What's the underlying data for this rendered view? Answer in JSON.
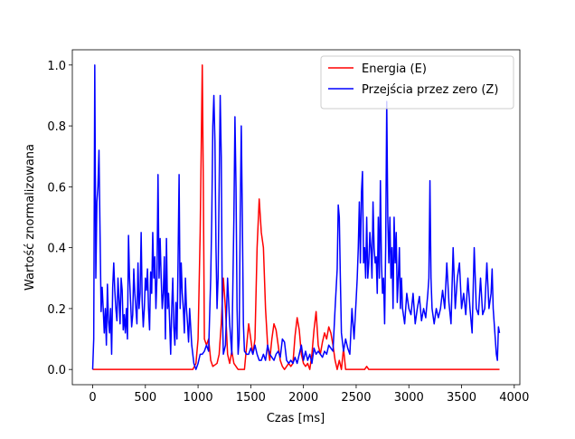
{
  "chart_data": {
    "type": "line",
    "xlabel": "Czas [ms]",
    "ylabel": "Wartość znormalizowana",
    "xlim": [
      -193,
      4053
    ],
    "ylim": [
      -0.05,
      1.05
    ],
    "xticks": [
      0,
      500,
      1000,
      1500,
      2000,
      2500,
      3000,
      3500,
      4000
    ],
    "yticks": [
      {
        "value": 0,
        "label": "0.0"
      },
      0.2,
      0.4,
      0.6,
      0.8,
      {
        "value": 1,
        "label": "1.0"
      }
    ],
    "legend": "upper right",
    "series": [
      {
        "name": "Energia (E)",
        "color": "#ff0000",
        "x": [
          0,
          950,
          980,
          1000,
          1020,
          1040,
          1050,
          1060,
          1080,
          1100,
          1120,
          1140,
          1180,
          1200,
          1220,
          1240,
          1260,
          1280,
          1300,
          1320,
          1340,
          1380,
          1440,
          1480,
          1500,
          1520,
          1540,
          1560,
          1580,
          1600,
          1620,
          1640,
          1660,
          1680,
          1700,
          1720,
          1740,
          1760,
          1780,
          1800,
          1820,
          1860,
          1880,
          1900,
          1920,
          1940,
          1960,
          1980,
          2000,
          2020,
          2040,
          2060,
          2080,
          2100,
          2120,
          2140,
          2160,
          2180,
          2200,
          2220,
          2240,
          2260,
          2280,
          2300,
          2320,
          2340,
          2360,
          2380,
          2400,
          2420,
          2580,
          2600,
          2620,
          3860
        ],
        "values": [
          0,
          0,
          0.02,
          0.1,
          0.45,
          1.0,
          0.6,
          0.1,
          0.08,
          0.1,
          0.03,
          0.01,
          0.02,
          0.05,
          0.15,
          0.3,
          0.2,
          0.05,
          0.02,
          0.06,
          0.02,
          0,
          0,
          0.15,
          0.1,
          0.05,
          0.1,
          0.4,
          0.56,
          0.45,
          0.4,
          0.2,
          0.08,
          0.03,
          0.1,
          0.15,
          0.13,
          0.08,
          0.03,
          0.01,
          0,
          0.02,
          0.01,
          0.02,
          0.11,
          0.17,
          0.13,
          0.05,
          0.02,
          0.01,
          0.02,
          0,
          0.05,
          0.13,
          0.19,
          0.08,
          0.05,
          0.09,
          0.12,
          0.1,
          0.14,
          0.12,
          0.08,
          0.03,
          0,
          0.03,
          0,
          0.07,
          0,
          0,
          0,
          0.01,
          0,
          0
        ]
      },
      {
        "name": "Przejścia przez zero (Z)",
        "color": "#0000ff",
        "x": [
          0,
          10,
          20,
          30,
          40,
          50,
          60,
          70,
          80,
          90,
          100,
          110,
          120,
          130,
          140,
          150,
          160,
          170,
          180,
          190,
          200,
          210,
          220,
          230,
          240,
          250,
          260,
          270,
          280,
          290,
          300,
          310,
          320,
          330,
          340,
          350,
          360,
          370,
          380,
          390,
          400,
          410,
          420,
          430,
          440,
          450,
          460,
          470,
          480,
          490,
          500,
          510,
          520,
          530,
          540,
          550,
          560,
          570,
          580,
          590,
          600,
          610,
          620,
          630,
          640,
          650,
          660,
          670,
          680,
          690,
          700,
          710,
          720,
          730,
          740,
          750,
          760,
          770,
          780,
          790,
          800,
          810,
          820,
          830,
          840,
          850,
          860,
          870,
          880,
          890,
          900,
          910,
          920,
          940,
          960,
          980,
          1000,
          1020,
          1040,
          1060,
          1080,
          1100,
          1120,
          1130,
          1140,
          1150,
          1160,
          1170,
          1180,
          1190,
          1200,
          1210,
          1220,
          1230,
          1240,
          1260,
          1280,
          1300,
          1320,
          1340,
          1350,
          1360,
          1370,
          1380,
          1390,
          1400,
          1410,
          1420,
          1430,
          1440,
          1460,
          1480,
          1500,
          1520,
          1540,
          1560,
          1580,
          1600,
          1620,
          1640,
          1660,
          1680,
          1700,
          1720,
          1740,
          1760,
          1780,
          1800,
          1820,
          1840,
          1860,
          1880,
          1900,
          1920,
          1940,
          1960,
          1980,
          2000,
          2020,
          2040,
          2060,
          2080,
          2100,
          2120,
          2140,
          2160,
          2180,
          2200,
          2220,
          2240,
          2260,
          2280,
          2300,
          2320,
          2330,
          2340,
          2350,
          2360,
          2380,
          2400,
          2420,
          2440,
          2460,
          2480,
          2500,
          2510,
          2520,
          2530,
          2540,
          2550,
          2560,
          2570,
          2580,
          2590,
          2600,
          2610,
          2620,
          2630,
          2640,
          2650,
          2660,
          2670,
          2680,
          2690,
          2700,
          2710,
          2720,
          2730,
          2740,
          2750,
          2760,
          2770,
          2780,
          2790,
          2800,
          2810,
          2820,
          2830,
          2840,
          2850,
          2860,
          2870,
          2880,
          2890,
          2900,
          2910,
          2920,
          2930,
          2940,
          2960,
          2980,
          3000,
          3020,
          3040,
          3060,
          3080,
          3100,
          3120,
          3140,
          3160,
          3180,
          3190,
          3200,
          3210,
          3220,
          3240,
          3260,
          3280,
          3300,
          3320,
          3340,
          3360,
          3380,
          3400,
          3420,
          3440,
          3460,
          3480,
          3500,
          3520,
          3540,
          3560,
          3580,
          3600,
          3620,
          3640,
          3660,
          3680,
          3700,
          3720,
          3740,
          3760,
          3780,
          3790,
          3800,
          3820,
          3830,
          3840,
          3850,
          3860
        ],
        "values": [
          0,
          0.1,
          1.0,
          0.3,
          0.55,
          0.6,
          0.72,
          0.45,
          0.19,
          0.27,
          0.2,
          0.12,
          0.2,
          0.08,
          0.28,
          0.16,
          0.12,
          0.2,
          0.05,
          0.27,
          0.35,
          0.26,
          0.2,
          0.16,
          0.3,
          0.23,
          0.15,
          0.3,
          0.26,
          0.13,
          0.18,
          0.12,
          0.2,
          0.1,
          0.44,
          0.3,
          0.22,
          0.14,
          0.18,
          0.33,
          0.25,
          0.2,
          0.15,
          0.35,
          0.2,
          0.25,
          0.45,
          0.22,
          0.14,
          0.2,
          0.3,
          0.26,
          0.33,
          0.2,
          0.13,
          0.32,
          0.25,
          0.45,
          0.3,
          0.37,
          0.2,
          0.3,
          0.64,
          0.3,
          0.43,
          0.3,
          0.2,
          0.25,
          0.37,
          0.1,
          0.43,
          0.2,
          0.25,
          0.16,
          0.05,
          0.2,
          0.3,
          0.14,
          0.08,
          0.22,
          0.1,
          0.35,
          0.64,
          0.2,
          0.35,
          0.25,
          0.2,
          0.12,
          0.3,
          0.2,
          0.15,
          0.09,
          0.2,
          0.08,
          0.02,
          0,
          0.02,
          0.05,
          0.05,
          0.06,
          0.08,
          0.06,
          0.3,
          0.5,
          0.8,
          0.9,
          0.75,
          0.4,
          0.2,
          0.3,
          0.6,
          0.9,
          0.7,
          0.2,
          0.05,
          0.08,
          0.3,
          0.15,
          0.05,
          0.5,
          0.83,
          0.6,
          0.2,
          0.05,
          0.1,
          0.5,
          0.8,
          0.5,
          0.15,
          0.06,
          0.05,
          0.05,
          0.07,
          0.05,
          0.08,
          0.05,
          0.03,
          0.03,
          0.05,
          0.03,
          0.08,
          0.05,
          0.04,
          0.03,
          0.05,
          0.06,
          0.04,
          0.1,
          0.09,
          0.03,
          0.02,
          0.03,
          0.02,
          0.04,
          0.02,
          0.05,
          0.08,
          0.03,
          0.06,
          0.03,
          0.05,
          0.02,
          0.07,
          0.05,
          0.06,
          0.05,
          0.04,
          0.06,
          0.05,
          0.08,
          0.07,
          0.06,
          0.2,
          0.33,
          0.54,
          0.5,
          0.3,
          0.12,
          0.06,
          0.1,
          0.07,
          0.05,
          0.2,
          0.1,
          0.23,
          0.3,
          0.4,
          0.55,
          0.35,
          0.58,
          0.65,
          0.35,
          0.4,
          0.3,
          0.5,
          0.3,
          0.35,
          0.45,
          0.4,
          0.3,
          0.55,
          0.4,
          0.35,
          0.37,
          0.25,
          0.5,
          0.3,
          0.62,
          0.35,
          0.25,
          0.3,
          0.15,
          0.4,
          0.88,
          0.5,
          0.35,
          0.5,
          0.3,
          0.4,
          0.2,
          0.5,
          0.35,
          0.45,
          0.22,
          0.3,
          0.4,
          0.2,
          0.3,
          0.2,
          0.15,
          0.25,
          0.2,
          0.18,
          0.25,
          0.15,
          0.2,
          0.24,
          0.16,
          0.2,
          0.17,
          0.25,
          0.3,
          0.62,
          0.3,
          0.2,
          0.15,
          0.2,
          0.17,
          0.2,
          0.26,
          0.2,
          0.35,
          0.22,
          0.15,
          0.4,
          0.2,
          0.3,
          0.35,
          0.2,
          0.25,
          0.18,
          0.3,
          0.2,
          0.12,
          0.4,
          0.2,
          0.18,
          0.3,
          0.18,
          0.2,
          0.35,
          0.2,
          0.25,
          0.33,
          0.2,
          0.1,
          0.05,
          0.03,
          0.14,
          0.12
        ]
      }
    ]
  }
}
